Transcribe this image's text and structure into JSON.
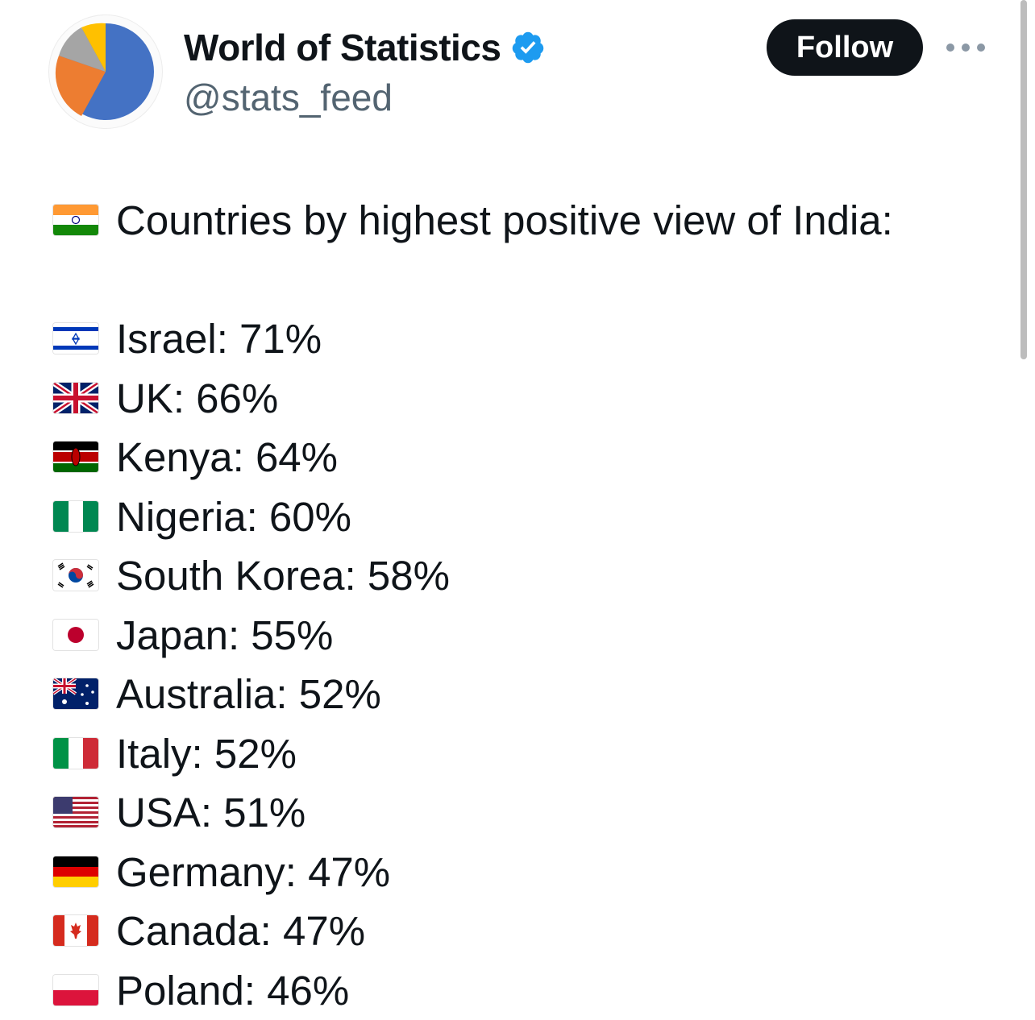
{
  "author": {
    "display_name": "World of Statistics",
    "handle": "@stats_feed",
    "avatar_icon": "pie-chart-avatar",
    "verified_icon": "verified-badge-icon",
    "verified_color": "#1d9bf0"
  },
  "actions": {
    "follow_label": "Follow",
    "more_icon": "more-options-icon"
  },
  "tweet": {
    "headline": {
      "flag": "india-flag-icon",
      "text": "Countries by highest positive view of India:"
    },
    "items": [
      {
        "flag": "israel-flag-icon",
        "text": "Israel: 71%"
      },
      {
        "flag": "uk-flag-icon",
        "text": "UK: 66%"
      },
      {
        "flag": "kenya-flag-icon",
        "text": "Kenya: 64%"
      },
      {
        "flag": "nigeria-flag-icon",
        "text": "Nigeria: 60%"
      },
      {
        "flag": "south-korea-flag-icon",
        "text": "South Korea: 58%"
      },
      {
        "flag": "japan-flag-icon",
        "text": "Japan: 55%"
      },
      {
        "flag": "australia-flag-icon",
        "text": "Australia: 52%"
      },
      {
        "flag": "italy-flag-icon",
        "text": "Italy: 52%"
      },
      {
        "flag": "usa-flag-icon",
        "text": "USA: 51%"
      },
      {
        "flag": "germany-flag-icon",
        "text": "Germany: 47%"
      },
      {
        "flag": "canada-flag-icon",
        "text": "Canada: 47%"
      },
      {
        "flag": "poland-flag-icon",
        "text": "Poland: 46%"
      }
    ]
  }
}
